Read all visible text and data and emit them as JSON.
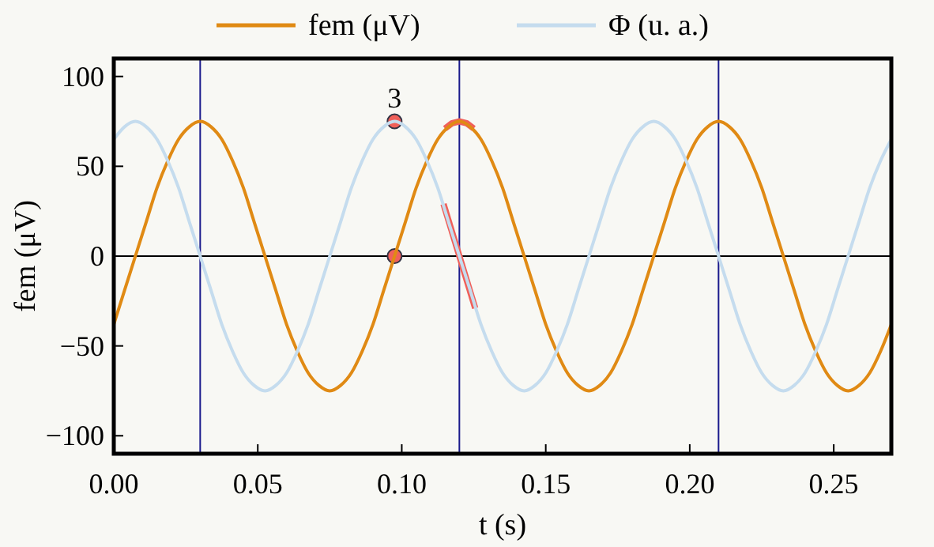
{
  "chart_data": {
    "type": "line",
    "xlabel": "t (s)",
    "ylabel": "fem (μV)",
    "x": [
      0,
      0.00375,
      0.0075,
      0.01125,
      0.015,
      0.01875,
      0.0225,
      0.02625,
      0.03,
      0.03375,
      0.0375,
      0.04125,
      0.045,
      0.04875,
      0.0525,
      0.05625,
      0.06,
      0.06375,
      0.0675,
      0.07125,
      0.075,
      0.07875,
      0.0825,
      0.08625,
      0.09,
      0.09375,
      0.0975,
      0.10125,
      0.105,
      0.10875,
      0.1125,
      0.11625,
      0.12,
      0.12375,
      0.1275,
      0.13125,
      0.135,
      0.13875,
      0.1425,
      0.14625,
      0.15,
      0.15375,
      0.1575,
      0.16125,
      0.165,
      0.16875,
      0.1725,
      0.17625,
      0.18,
      0.18375,
      0.1875,
      0.19125,
      0.195,
      0.19875,
      0.2025,
      0.20625,
      0.21,
      0.21375,
      0.2175,
      0.22125,
      0.225,
      0.22875,
      0.2325,
      0.23625,
      0.24,
      0.24375,
      0.2475,
      0.25125,
      0.255,
      0.25875,
      0.2625,
      0.26625,
      0.27
    ],
    "series": [
      {
        "name": "fem (μV)",
        "color": "#e08a14",
        "values": [
          -38,
          -19,
          0,
          19,
          38,
          53,
          65,
          72,
          75,
          72,
          65,
          53,
          38,
          19,
          0,
          -19,
          -38,
          -53,
          -65,
          -72,
          -75,
          -72,
          -65,
          -53,
          -38,
          -19,
          0,
          19,
          38,
          53,
          65,
          72,
          75,
          72,
          65,
          53,
          38,
          19,
          0,
          -19,
          -38,
          -53,
          -65,
          -72,
          -75,
          -72,
          -65,
          -53,
          -38,
          -19,
          0,
          19,
          38,
          53,
          65,
          72,
          75,
          72,
          65,
          53,
          38,
          19,
          0,
          -19,
          -38,
          -53,
          -65,
          -72,
          -75,
          -72,
          -65,
          -53,
          -38
        ]
      },
      {
        "name": "Φ (u. a.)",
        "color": "#c5dcee",
        "values": [
          65,
          72,
          75,
          72,
          65,
          53,
          38,
          19,
          0,
          -19,
          -38,
          -53,
          -65,
          -72,
          -75,
          -72,
          -65,
          -53,
          -38,
          -19,
          0,
          19,
          38,
          53,
          65,
          72,
          75,
          72,
          65,
          53,
          38,
          19,
          0,
          -19,
          -38,
          -53,
          -65,
          -72,
          -75,
          -72,
          -65,
          -53,
          -38,
          -19,
          0,
          19,
          38,
          53,
          65,
          72,
          75,
          72,
          65,
          53,
          38,
          19,
          0,
          -19,
          -38,
          -53,
          -65,
          -72,
          -75,
          -72,
          -65,
          -53,
          -38,
          -19,
          0,
          19,
          38,
          53,
          65
        ]
      },
      {
        "type": "line",
        "color": "#f0605a",
        "x": [
          0.115,
          0.1175,
          0.12,
          0.1225,
          0.125
        ],
        "values": [
          71,
          74,
          75,
          74,
          71
        ]
      },
      {
        "type": "line",
        "color": "#f0605a",
        "x": [
          0.1145,
          0.1255
        ],
        "values": [
          29,
          -29
        ]
      },
      {
        "type": "scatter",
        "color": "#f0605a",
        "marker": "circle",
        "x": [
          0.0975
        ],
        "values": [
          75
        ]
      },
      {
        "type": "scatter",
        "color": "#f0605a",
        "marker": "circle",
        "x": [
          0.0975
        ],
        "values": [
          0
        ]
      }
    ],
    "annotations": [
      {
        "text": "3",
        "x": 0.0975,
        "y": 75
      }
    ],
    "ref_lines": [
      {
        "axis": "y",
        "value": 0,
        "color": "#000000"
      },
      {
        "axis": "x",
        "value": 0.03,
        "color": "#1a1a8c"
      },
      {
        "axis": "x",
        "value": 0.12,
        "color": "#1a1a8c"
      },
      {
        "axis": "x",
        "value": 0.21,
        "color": "#1a1a8c"
      }
    ],
    "xlim": [
      0,
      0.27
    ],
    "xticks": [
      {
        "value": 0,
        "label": "0.00"
      },
      {
        "value": 0.05,
        "label": "0.05"
      },
      {
        "value": 0.1,
        "label": "0.10"
      },
      {
        "value": 0.15,
        "label": "0.15"
      },
      {
        "value": 0.2,
        "label": "0.20"
      },
      {
        "value": 0.25,
        "label": "0.25"
      }
    ],
    "ylim": [
      -110,
      110
    ],
    "yticks": [
      {
        "value": -100,
        "label": "−100"
      },
      {
        "value": -50,
        "label": "−50"
      },
      0,
      50,
      100
    ],
    "grid": false,
    "legend": "top",
    "marker": "none",
    "line_style": "solid"
  }
}
